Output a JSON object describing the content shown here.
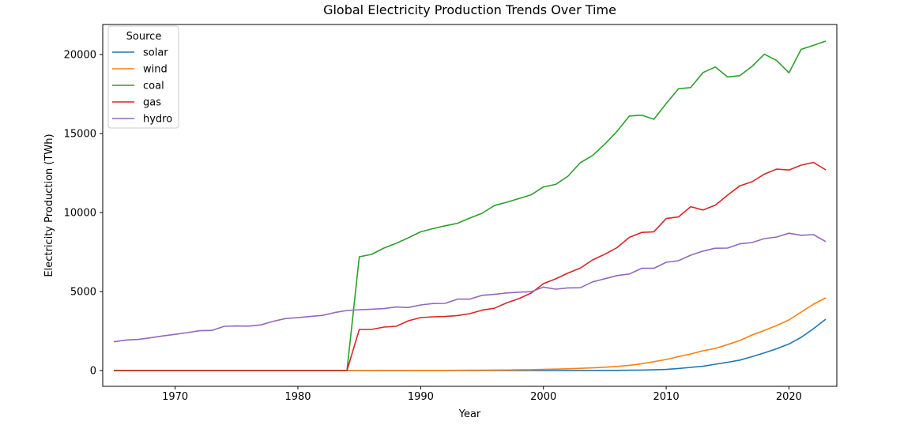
{
  "chart_data": {
    "type": "line",
    "title": "Global Electricity Production Trends Over Time",
    "xlabel": "Year",
    "ylabel": "Electricity Production (TWh)",
    "xlim": [
      1964.1,
      2023.9
    ],
    "ylim": [
      -1000,
      21900
    ],
    "xticks": [
      1970,
      1980,
      1990,
      2000,
      2010,
      2020
    ],
    "yticks": [
      0,
      5000,
      10000,
      15000,
      20000
    ],
    "grid": false,
    "legend": {
      "title": "Source",
      "placement": "top-left"
    },
    "x": [
      1965,
      1966,
      1967,
      1968,
      1969,
      1970,
      1971,
      1972,
      1973,
      1974,
      1975,
      1976,
      1977,
      1978,
      1979,
      1980,
      1981,
      1982,
      1983,
      1984,
      1985,
      1986,
      1987,
      1988,
      1989,
      1990,
      1991,
      1992,
      1993,
      1994,
      1995,
      1996,
      1997,
      1998,
      1999,
      2000,
      2001,
      2002,
      2003,
      2004,
      2005,
      2006,
      2007,
      2008,
      2009,
      2010,
      2011,
      2012,
      2013,
      2014,
      2015,
      2016,
      2017,
      2018,
      2019,
      2020,
      2021,
      2022,
      2023
    ],
    "series": [
      {
        "name": "solar",
        "color": "#1f77b4",
        "values": [
          0,
          0,
          0,
          0,
          0,
          0,
          0,
          0,
          0,
          0,
          0,
          0,
          0,
          0,
          0,
          0,
          0,
          0,
          0,
          0,
          0,
          0,
          0,
          0,
          0,
          0,
          0,
          0,
          0,
          0,
          0,
          0,
          0,
          0,
          0,
          1,
          2,
          3,
          4,
          5,
          8,
          12,
          20,
          32,
          45,
          70,
          130,
          200,
          270,
          400,
          520,
          660,
          880,
          1120,
          1380,
          1680,
          2100,
          2650,
          3250
        ]
      },
      {
        "name": "wind",
        "color": "#ff7f0e",
        "values": [
          0,
          0,
          0,
          0,
          0,
          0,
          0,
          0,
          0,
          0,
          0,
          0,
          0,
          0,
          0,
          0,
          0,
          0,
          0,
          0,
          2,
          3,
          4,
          5,
          6,
          8,
          10,
          12,
          15,
          18,
          25,
          30,
          35,
          45,
          55,
          70,
          90,
          110,
          140,
          170,
          210,
          260,
          330,
          430,
          560,
          700,
          880,
          1050,
          1250,
          1400,
          1640,
          1900,
          2250,
          2540,
          2850,
          3200,
          3700,
          4200,
          4600
        ]
      },
      {
        "name": "coal",
        "color": "#2ca02c",
        "values": [
          0,
          0,
          0,
          0,
          0,
          0,
          0,
          0,
          0,
          0,
          0,
          0,
          0,
          0,
          0,
          0,
          0,
          0,
          0,
          0,
          7200,
          7350,
          7750,
          8050,
          8400,
          8780,
          8980,
          9160,
          9320,
          9650,
          9950,
          10440,
          10650,
          10880,
          11120,
          11620,
          11780,
          12300,
          13150,
          13610,
          14330,
          15140,
          16110,
          16160,
          15900,
          16900,
          17830,
          17910,
          18860,
          19210,
          18580,
          18660,
          19250,
          20020,
          19620,
          18840,
          20330,
          20580,
          20850
        ]
      },
      {
        "name": "gas",
        "color": "#d62728",
        "values": [
          0,
          0,
          0,
          0,
          0,
          0,
          0,
          0,
          0,
          0,
          0,
          0,
          0,
          0,
          0,
          0,
          0,
          0,
          0,
          0,
          2600,
          2600,
          2750,
          2800,
          3150,
          3350,
          3400,
          3420,
          3480,
          3600,
          3820,
          3940,
          4280,
          4550,
          4900,
          5500,
          5800,
          6170,
          6480,
          7000,
          7360,
          7780,
          8430,
          8740,
          8780,
          9620,
          9720,
          10370,
          10160,
          10460,
          11100,
          11690,
          11950,
          12430,
          12750,
          12690,
          13000,
          13170,
          12700
        ]
      },
      {
        "name": "hydro",
        "color": "#9467bd",
        "values": [
          1820,
          1930,
          1970,
          2070,
          2190,
          2290,
          2400,
          2520,
          2540,
          2800,
          2820,
          2810,
          2890,
          3120,
          3290,
          3350,
          3420,
          3490,
          3670,
          3800,
          3850,
          3880,
          3920,
          4020,
          3990,
          4150,
          4240,
          4250,
          4520,
          4520,
          4760,
          4820,
          4910,
          4960,
          4990,
          5280,
          5150,
          5230,
          5240,
          5610,
          5810,
          6010,
          6110,
          6470,
          6470,
          6850,
          6950,
          7300,
          7560,
          7740,
          7750,
          8020,
          8100,
          8350,
          8450,
          8690,
          8560,
          8600,
          8160
        ]
      }
    ]
  }
}
